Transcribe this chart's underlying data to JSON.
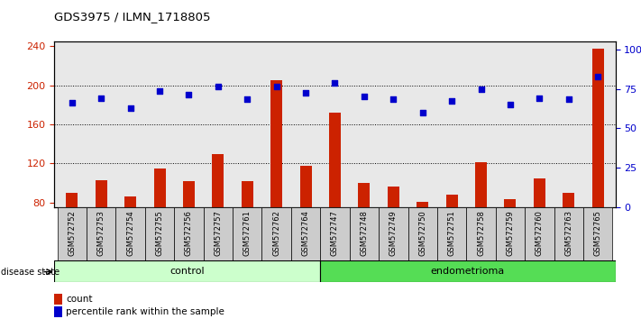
{
  "title": "GDS3975 / ILMN_1718805",
  "samples": [
    "GSM572752",
    "GSM572753",
    "GSM572754",
    "GSM572755",
    "GSM572756",
    "GSM572757",
    "GSM572761",
    "GSM572762",
    "GSM572764",
    "GSM572747",
    "GSM572748",
    "GSM572749",
    "GSM572750",
    "GSM572751",
    "GSM572758",
    "GSM572759",
    "GSM572760",
    "GSM572763",
    "GSM572765"
  ],
  "counts": [
    90,
    103,
    86,
    115,
    102,
    130,
    102,
    205,
    118,
    172,
    100,
    96,
    81,
    88,
    121,
    83,
    105,
    90,
    238
  ],
  "percentiles": [
    63,
    66,
    60,
    70,
    68,
    73,
    65,
    73,
    69,
    75,
    67,
    65,
    57,
    64,
    71,
    62,
    66,
    65,
    79
  ],
  "bar_color": "#cc2200",
  "dot_color": "#0000cc",
  "ylim_left": [
    75,
    245
  ],
  "yticks_left": [
    80,
    120,
    160,
    200,
    240
  ],
  "ylim_right": [
    0,
    105
  ],
  "yticks_right": [
    0,
    25,
    50,
    75,
    100
  ],
  "plot_bg": "#e8e8e8",
  "label_bg": "#cccccc",
  "control_color": "#ccffcc",
  "endo_color": "#55dd55",
  "n_control": 9,
  "n_endo": 10,
  "dotted_lines": [
    120,
    160,
    200
  ]
}
